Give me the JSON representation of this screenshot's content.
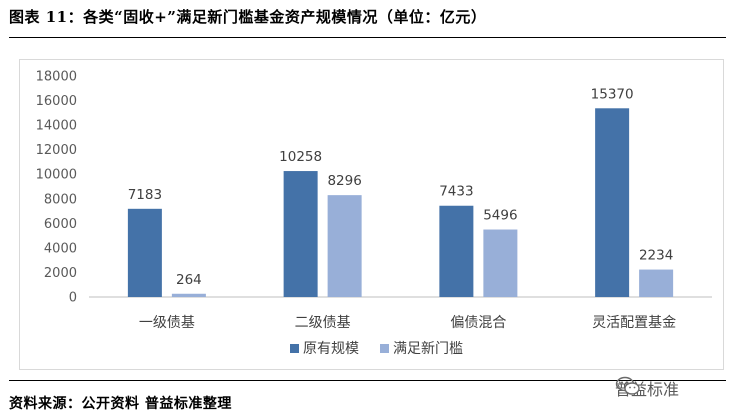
{
  "header": {
    "title": "图表 11：各类“固收+”满足新门槛基金资产规模情况（单位：亿元）"
  },
  "footer": {
    "source": "资料来源：公开资料  普益标准整理",
    "watermark": "普益标准"
  },
  "colors": {
    "series_1": "#4472a8",
    "series_2": "#98afd8",
    "gridline": "#d9d9d9",
    "axis": "#bfbfbf"
  },
  "chart_data": {
    "type": "bar",
    "title": "",
    "xlabel": "",
    "ylabel": "",
    "ylim": [
      0,
      18000
    ],
    "yticks": [
      0,
      2000,
      4000,
      6000,
      8000,
      10000,
      12000,
      14000,
      16000,
      18000
    ],
    "grid": false,
    "legend_position": "bottom",
    "categories": [
      "一级债基",
      "二级债基",
      "偏债混合",
      "灵活配置基金"
    ],
    "series": [
      {
        "name": "原有规模",
        "values": [
          7183,
          10258,
          7433,
          15370
        ]
      },
      {
        "name": "满足新门槛",
        "values": [
          264,
          8296,
          5496,
          2234
        ]
      }
    ]
  }
}
